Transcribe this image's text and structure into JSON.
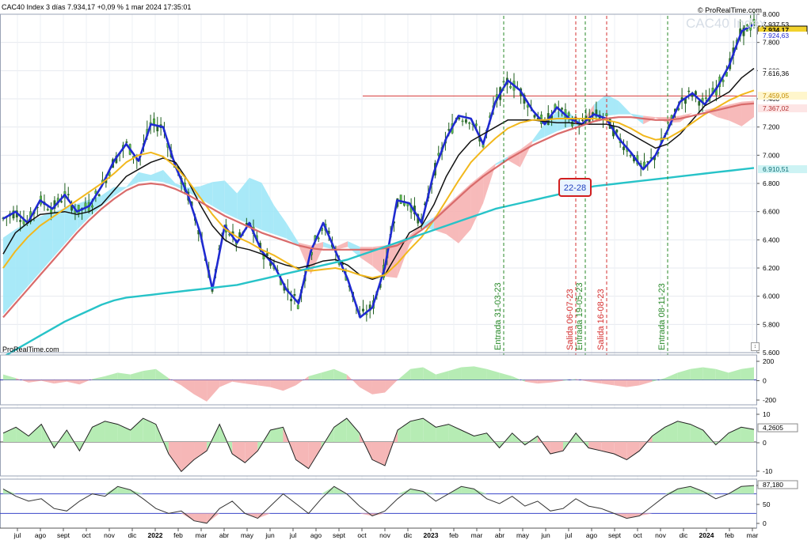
{
  "header": {
    "title": "CAC40 Index 3 días 7.934,17 +0,09 % 1 mar 2024 17:35:01",
    "brand_top": "© ProRealTime.com",
    "brand_bottom": "ProRealTime.com",
    "instrument_label": "CAC40 Index"
  },
  "chart_data": [
    {
      "type": "line",
      "name": "main-price-panel",
      "ylim": [
        5600,
        8000
      ],
      "y_ticks": [
        "8.000",
        "7.800",
        "7.600",
        "7.400",
        "7.200",
        "7.000",
        "6.800",
        "6.600",
        "6.400",
        "6.200",
        "6.000",
        "5.800",
        "5.600"
      ],
      "x_labels": [
        "jul",
        "ago",
        "sept",
        "oct",
        "nov",
        "dic",
        "2022",
        "feb",
        "mar",
        "abr",
        "may",
        "jun",
        "jul",
        "ago",
        "sept",
        "oct",
        "nov",
        "dic",
        "2023",
        "feb",
        "mar",
        "abr",
        "may",
        "jun",
        "jul",
        "ago",
        "sept",
        "oct",
        "nov",
        "dic",
        "2024",
        "feb",
        "mar"
      ],
      "price_anchors": [
        6550,
        6620,
        6480,
        6700,
        6600,
        6750,
        6580,
        6650,
        6800,
        7000,
        7100,
        6950,
        7250,
        7200,
        6900,
        6700,
        6400,
        6000,
        6550,
        6350,
        6550,
        6300,
        6200,
        6000,
        5900,
        6350,
        6550,
        6300,
        6100,
        5800,
        5900,
        6200,
        6700,
        6650,
        6500,
        6900,
        7150,
        7300,
        7250,
        7050,
        7400,
        7550,
        7450,
        7300,
        7200,
        7350,
        7250,
        7200,
        7300,
        7250,
        7100,
        7000,
        6900,
        7000,
        7200,
        7400,
        7450,
        7350,
        7500,
        7650,
        7900,
        7930
      ],
      "series": [
        {
          "name": "",
          "color": "#1f2ad1",
          "values": [
            6550,
            6600,
            6520,
            6680,
            6620,
            6720,
            6600,
            6640,
            6780,
            6960,
            7080,
            6960,
            7220,
            7200,
            6920,
            6720,
            6450,
            6050,
            6500,
            6380,
            6520,
            6320,
            6220,
            6050,
            5950,
            6320,
            6520,
            6320,
            6120,
            5850,
            5920,
            6200,
            6680,
            6660,
            6520,
            6880,
            7120,
            7280,
            7260,
            7080,
            7380,
            7530,
            7460,
            7320,
            7220,
            7340,
            7260,
            7220,
            7290,
            7260,
            7120,
            7020,
            6900,
            7000,
            7180,
            7380,
            7440,
            7360,
            7480,
            7640,
            7880,
            7930
          ]
        },
        {
          "name": "",
          "color": "#111111",
          "values": [
            6300,
            6450,
            6520,
            6580,
            6590,
            6600,
            6580,
            6600,
            6650,
            6750,
            6850,
            6900,
            6950,
            6980,
            6950,
            6820,
            6650,
            6500,
            6400,
            6350,
            6330,
            6300,
            6250,
            6220,
            6200,
            6220,
            6250,
            6260,
            6220,
            6150,
            6120,
            6150,
            6300,
            6450,
            6500,
            6650,
            6850,
            7000,
            7100,
            7150,
            7200,
            7250,
            7250,
            7250,
            7240,
            7230,
            7230,
            7220,
            7220,
            7220,
            7200,
            7150,
            7100,
            7050,
            7080,
            7150,
            7250,
            7350,
            7400,
            7450,
            7550,
            7616
          ]
        },
        {
          "name": "",
          "color": "#f2b81c",
          "values": [
            6200,
            6320,
            6420,
            6500,
            6560,
            6620,
            6680,
            6740,
            6800,
            6870,
            6950,
            7000,
            7020,
            6990,
            6920,
            6820,
            6700,
            6580,
            6480,
            6420,
            6380,
            6330,
            6290,
            6240,
            6190,
            6180,
            6190,
            6200,
            6180,
            6150,
            6130,
            6150,
            6230,
            6330,
            6420,
            6540,
            6680,
            6820,
            6950,
            7040,
            7120,
            7190,
            7230,
            7250,
            7250,
            7260,
            7260,
            7260,
            7260,
            7250,
            7230,
            7190,
            7140,
            7110,
            7120,
            7170,
            7230,
            7290,
            7340,
            7390,
            7430,
            7460
          ]
        },
        {
          "name": "",
          "color": "#d96b6b",
          "values": [
            5850,
            5950,
            6050,
            6150,
            6250,
            6350,
            6450,
            6540,
            6620,
            6690,
            6750,
            6790,
            6800,
            6790,
            6760,
            6720,
            6670,
            6620,
            6570,
            6530,
            6490,
            6450,
            6420,
            6390,
            6360,
            6340,
            6330,
            6330,
            6330,
            6330,
            6330,
            6340,
            6360,
            6410,
            6470,
            6540,
            6620,
            6700,
            6780,
            6850,
            6910,
            6970,
            7020,
            7070,
            7110,
            7150,
            7180,
            7210,
            7240,
            7260,
            7270,
            7270,
            7260,
            7250,
            7250,
            7260,
            7280,
            7300,
            7320,
            7340,
            7360,
            7367
          ]
        },
        {
          "name": "",
          "color": "#27c3c8",
          "values": [
            5570,
            5620,
            5670,
            5720,
            5770,
            5820,
            5860,
            5900,
            5940,
            5970,
            5990,
            6000,
            6010,
            6020,
            6030,
            6040,
            6050,
            6060,
            6070,
            6080,
            6100,
            6120,
            6140,
            6160,
            6180,
            6200,
            6220,
            6240,
            6260,
            6290,
            6320,
            6350,
            6380,
            6410,
            6440,
            6470,
            6500,
            6530,
            6560,
            6590,
            6620,
            6640,
            6660,
            6680,
            6700,
            6720,
            6740,
            6760,
            6780,
            6790,
            6800,
            6810,
            6820,
            6830,
            6840,
            6850,
            6860,
            6870,
            6880,
            6890,
            6900,
            6910
          ]
        }
      ],
      "price_labels": [
        "7.937,53",
        "7.934,17",
        "7.924,63",
        "7.616,36",
        "7.459,05",
        "7.367,02",
        "6.910,51"
      ],
      "h_line_value": 7420,
      "annotations": [
        {
          "label": "Entrada 31-03-23",
          "kind": "entrada",
          "color": "#2a8a2a"
        },
        {
          "label": "Salida 06-07-23",
          "kind": "salida",
          "color": "#d63030"
        },
        {
          "label": "Entrada 19-05-23",
          "kind": "entrada",
          "color": "#2a8a2a"
        },
        {
          "label": "Salida 16-08-23",
          "kind": "salida",
          "color": "#d63030"
        },
        {
          "label": "Entrada 08-11-23",
          "kind": "entrada",
          "color": "#2a8a2a"
        }
      ],
      "boxed_label": "22-28"
    },
    {
      "type": "area",
      "name": "oscillator-1",
      "y_ticks": [
        "200",
        "0",
        "-200"
      ],
      "values": [
        60,
        20,
        -30,
        -10,
        -40,
        -20,
        -50,
        10,
        40,
        80,
        60,
        100,
        120,
        20,
        -60,
        -160,
        -240,
        -80,
        -20,
        -40,
        -60,
        -80,
        -120,
        -60,
        40,
        80,
        120,
        60,
        -80,
        -160,
        -140,
        0,
        120,
        140,
        60,
        100,
        140,
        150,
        120,
        80,
        40,
        -20,
        -40,
        -30,
        -10,
        10,
        -20,
        -40,
        -60,
        -80,
        -60,
        -20,
        20,
        80,
        120,
        140,
        120,
        80,
        120,
        140
      ]
    },
    {
      "type": "area",
      "name": "oscillator-2",
      "y_ticks": [
        "10",
        "0",
        "-10"
      ],
      "value_label": "4,2605",
      "values": [
        3,
        5,
        2,
        6,
        -2,
        4,
        -3,
        5,
        7,
        6,
        4,
        8,
        6,
        -4,
        -10,
        -6,
        -3,
        6,
        -4,
        -7,
        -3,
        4,
        5,
        -6,
        -9,
        -2,
        5,
        8,
        3,
        -6,
        -8,
        4,
        7,
        8,
        5,
        6,
        4,
        2,
        3,
        -2,
        3,
        -1,
        2,
        -4,
        -3,
        3,
        -2,
        -3,
        -4,
        -6,
        -3,
        2,
        5,
        7,
        6,
        4,
        -1,
        3,
        5,
        4.26
      ]
    },
    {
      "type": "line",
      "name": "oscillator-3",
      "y_ticks": [
        "100",
        "50",
        "0"
      ],
      "value_label": "87,180",
      "thresholds": [
        70,
        30
      ],
      "values": [
        80,
        65,
        55,
        60,
        40,
        35,
        55,
        70,
        65,
        85,
        78,
        60,
        40,
        30,
        35,
        15,
        10,
        40,
        55,
        30,
        20,
        45,
        70,
        50,
        30,
        60,
        85,
        70,
        45,
        25,
        35,
        60,
        80,
        75,
        55,
        70,
        85,
        80,
        60,
        50,
        65,
        45,
        55,
        35,
        40,
        60,
        45,
        40,
        30,
        20,
        25,
        45,
        65,
        80,
        85,
        75,
        60,
        70,
        85,
        87
      ]
    }
  ]
}
